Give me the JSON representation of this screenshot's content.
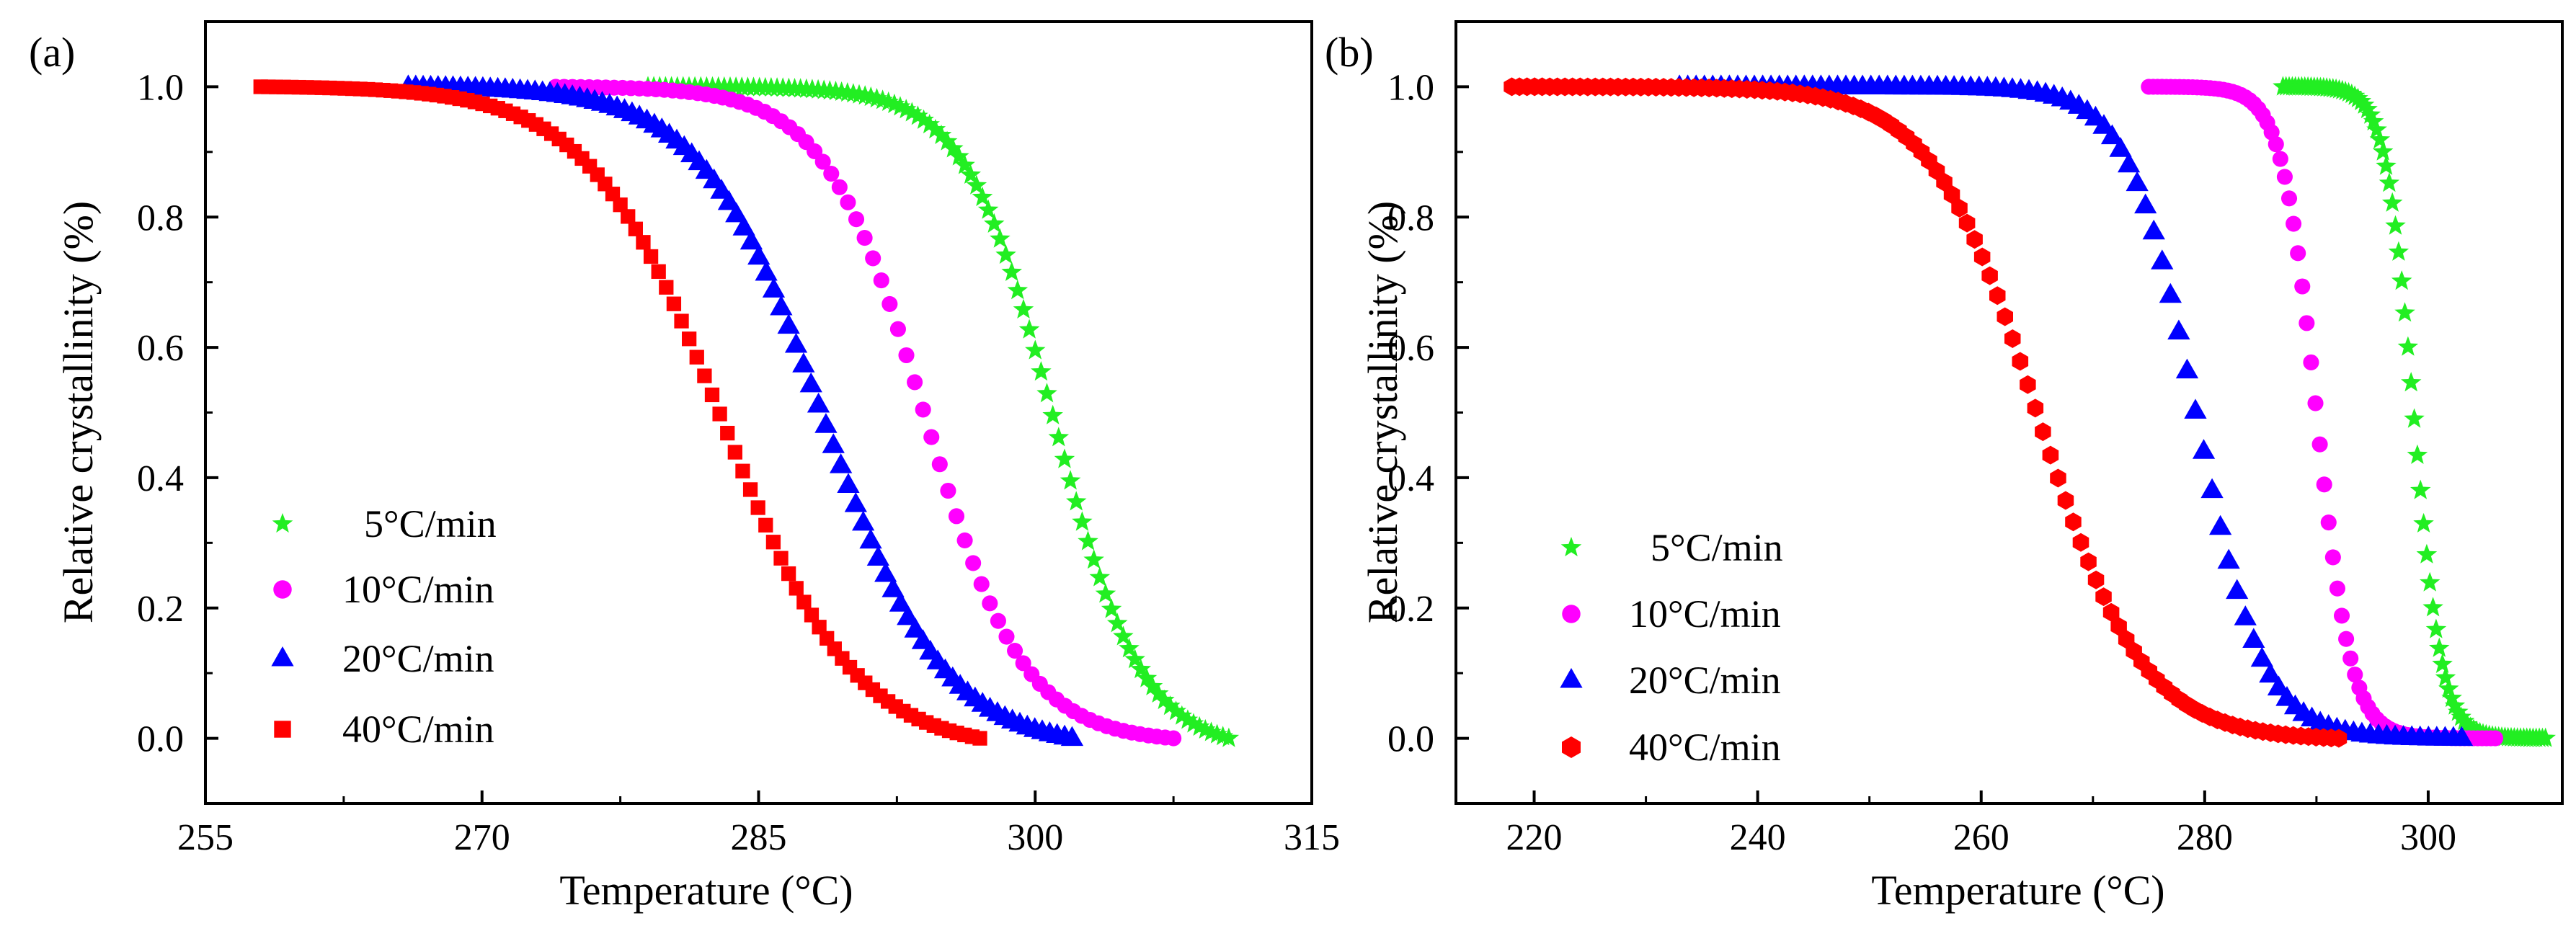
{
  "figure": {
    "panels": [
      "(a)",
      "(b)"
    ]
  },
  "colors": {
    "5C": "#22ee22",
    "10C": "#ff00ff",
    "20C": "#0000ff",
    "40C": "#ff0000"
  },
  "chart_data": [
    {
      "type": "scatter",
      "panel_label": "(a)",
      "xlabel": "Temperature (°C)",
      "ylabel": "Relative crystallinity (%)",
      "xlim": [
        255,
        315
      ],
      "ylim": [
        -0.1,
        1.1
      ],
      "xticks": [
        255,
        270,
        285,
        300,
        315
      ],
      "yticks": [
        0.0,
        0.2,
        0.4,
        0.6,
        0.8,
        1.0
      ],
      "xtick_labels": [
        "255",
        "270",
        "285",
        "300",
        "315"
      ],
      "ytick_labels": [
        "0.0",
        "0.2",
        "0.4",
        "0.6",
        "0.8",
        "1.0"
      ],
      "legend_position": "lower-left",
      "series": [
        {
          "name": "5°C/min",
          "marker": "star",
          "color_key": "5C",
          "x_start": 279,
          "x_end": 310.5,
          "midpoint": 301,
          "width": 2.4,
          "n_points": 100
        },
        {
          "name": "10°C/min",
          "marker": "circle",
          "color_key": "10C",
          "x_start": 274,
          "x_end": 307.5,
          "midpoint": 294,
          "width": 2.7,
          "n_points": 75
        },
        {
          "name": "20°C/min",
          "marker": "triangle",
          "color_key": "20C",
          "x_start": 266,
          "x_end": 302,
          "midpoint": 288.5,
          "width": 3.3,
          "n_points": 90
        },
        {
          "name": "40°C/min",
          "marker": "square",
          "color_key": "40C",
          "x_start": 258,
          "x_end": 297,
          "midpoint": 283,
          "width": 3.6,
          "n_points": 95
        }
      ]
    },
    {
      "type": "scatter",
      "panel_label": "(b)",
      "xlabel": "Temperature (°C)",
      "ylabel": "Relative crystallinity (%)",
      "xlim": [
        213,
        312
      ],
      "ylim": [
        -0.1,
        1.1
      ],
      "xticks": [
        220,
        240,
        260,
        280,
        300
      ],
      "yticks": [
        0.0,
        0.2,
        0.4,
        0.6,
        0.8,
        1.0
      ],
      "xtick_labels": [
        "220",
        "240",
        "260",
        "280",
        "300"
      ],
      "ytick_labels": [
        "0.0",
        "0.2",
        "0.4",
        "0.6",
        "0.8",
        "1.0"
      ],
      "legend_position": "lower-left",
      "series": [
        {
          "name": "5°C/min",
          "marker": "star",
          "color_key": "5C",
          "x_start": 287,
          "x_end": 310.5,
          "midpoint": 298.7,
          "width": 1.25,
          "n_points": 85
        },
        {
          "name": "10°C/min",
          "marker": "circle",
          "color_key": "10C",
          "x_start": 275,
          "x_end": 306,
          "midpoint": 290,
          "width": 1.55,
          "n_points": 80
        },
        {
          "name": "20°C/min",
          "marker": "triangle",
          "color_key": "20C",
          "x_start": 233,
          "x_end": 303,
          "midpoint": 279.2,
          "width": 3.0,
          "n_points": 95
        },
        {
          "name": "40°C/min",
          "marker": "hexagon",
          "color_key": "40C",
          "x_start": 218,
          "x_end": 292,
          "midpoint": 265,
          "width": 4.7,
          "n_points": 110
        }
      ]
    }
  ]
}
